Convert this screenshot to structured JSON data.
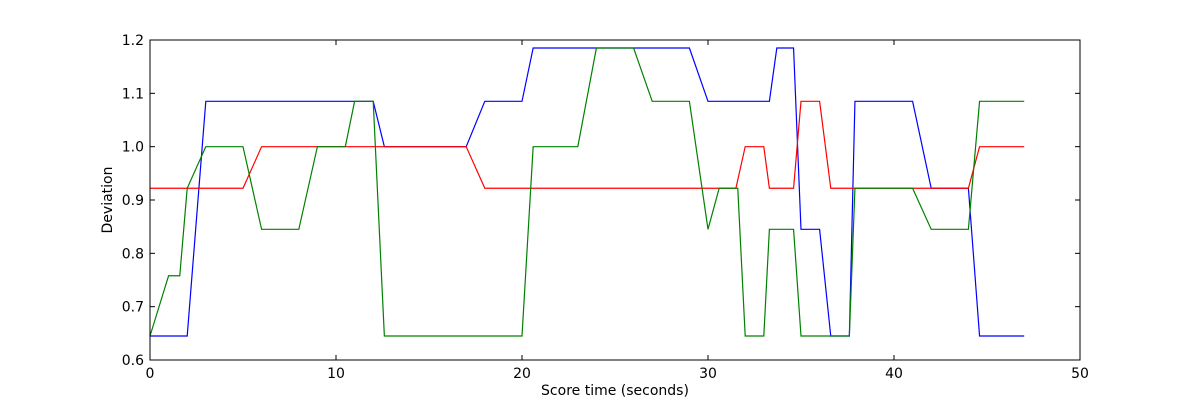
{
  "chart_data": {
    "type": "line",
    "title": "",
    "xlabel": "Score time (seconds)",
    "ylabel": "Deviation",
    "xlim": [
      0,
      50
    ],
    "ylim": [
      0.6,
      1.2
    ],
    "xticks": [
      0,
      10,
      20,
      30,
      40,
      50
    ],
    "xtick_labels": [
      "0",
      "10",
      "20",
      "30",
      "40",
      "50"
    ],
    "yticks": [
      0.6,
      0.7,
      0.8,
      0.9,
      1.0,
      1.1,
      1.2
    ],
    "ytick_labels": [
      "0.6",
      "0.7",
      "0.8",
      "0.9",
      "1.0",
      "1.1",
      "1.2"
    ],
    "grid": false,
    "legend": "none",
    "series": [
      {
        "color": "#0000ff",
        "x": [
          0,
          2,
          3,
          11,
          12,
          12.6,
          17,
          18,
          20,
          20.6,
          29,
          30,
          33.3,
          33.7,
          34.6,
          35,
          36,
          36.6,
          37.6,
          37.9,
          41,
          42,
          44,
          44.6,
          47
        ],
        "y": [
          0.645,
          0.645,
          1.085,
          1.085,
          1.085,
          1.0,
          1.0,
          1.085,
          1.085,
          1.185,
          1.185,
          1.085,
          1.085,
          1.185,
          1.185,
          0.845,
          0.845,
          0.645,
          0.645,
          1.085,
          1.085,
          0.922,
          0.922,
          0.645,
          0.645
        ]
      },
      {
        "color": "#ff0000",
        "x": [
          0,
          5,
          6,
          17,
          18,
          31.5,
          32,
          33,
          33.3,
          34,
          34.6,
          35,
          36,
          36.6,
          44,
          44.6,
          47
        ],
        "y": [
          0.922,
          0.922,
          1.0,
          1.0,
          0.922,
          0.922,
          1.0,
          1.0,
          0.922,
          0.922,
          0.922,
          1.085,
          1.085,
          0.922,
          0.922,
          1.0,
          1.0
        ]
      },
      {
        "color": "#008000",
        "x": [
          0,
          1,
          1.6,
          2,
          3,
          5,
          6,
          8,
          9,
          10.5,
          11,
          12,
          12.6,
          20,
          20.6,
          23,
          24,
          26,
          27,
          29,
          30,
          30.6,
          31.6,
          32,
          33,
          33.3,
          34,
          34.6,
          35,
          36,
          37.6,
          37.9,
          41,
          42,
          44,
          44.6,
          47
        ],
        "y": [
          0.645,
          0.758,
          0.758,
          0.922,
          1.0,
          1.0,
          0.845,
          0.845,
          1.0,
          1.0,
          1.085,
          1.085,
          0.645,
          0.645,
          1.0,
          1.0,
          1.185,
          1.185,
          1.085,
          1.085,
          0.845,
          0.922,
          0.922,
          0.645,
          0.645,
          0.845,
          0.845,
          0.845,
          0.645,
          0.645,
          0.645,
          0.922,
          0.922,
          0.845,
          0.845,
          1.085,
          1.085
        ]
      }
    ]
  }
}
